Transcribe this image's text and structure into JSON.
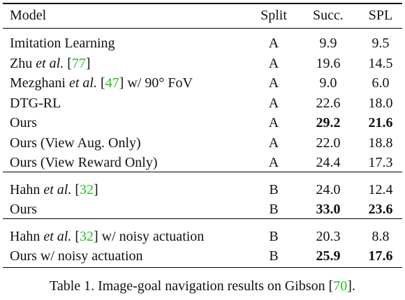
{
  "table": {
    "header": [
      "Model",
      "Split",
      "Succ.",
      "SPL"
    ],
    "groups": [
      {
        "rows": [
          {
            "model": [
              "Imitation Learning"
            ],
            "split": "A",
            "succ": "9.9",
            "spl": "9.5"
          },
          {
            "model": [
              "Zhu ",
              "et al.",
              " [",
              "77",
              "]"
            ],
            "split": "A",
            "succ": "19.6",
            "spl": "14.5"
          },
          {
            "model": [
              "Mezghani ",
              "et al.",
              " [",
              "47",
              "] w/ 90° FoV"
            ],
            "split": "A",
            "succ": "9.0",
            "spl": "6.0"
          },
          {
            "model": [
              "DTG-RL"
            ],
            "split": "A",
            "succ": "22.6",
            "spl": "18.0"
          },
          {
            "model": [
              "Ours"
            ],
            "split": "A",
            "succ": "29.2",
            "spl": "21.6"
          },
          {
            "model": [
              "Ours (View Aug. Only)"
            ],
            "split": "A",
            "succ": "22.0",
            "spl": "18.8"
          },
          {
            "model": [
              "Ours (View Reward Only)"
            ],
            "split": "A",
            "succ": "24.4",
            "spl": "17.3"
          }
        ]
      },
      {
        "rows": [
          {
            "model": [
              "Hahn ",
              "et al.",
              " [",
              "32",
              "]"
            ],
            "split": "B",
            "succ": "24.0",
            "spl": "12.4"
          },
          {
            "model": [
              "Ours"
            ],
            "split": "B",
            "succ": "33.0",
            "spl": "23.6"
          }
        ]
      },
      {
        "rows": [
          {
            "model": [
              "Hahn ",
              "et al.",
              " [",
              "32",
              "] w/ noisy actuation"
            ],
            "split": "B",
            "succ": "20.3",
            "spl": "8.8"
          },
          {
            "model": [
              "Ours w/ noisy actuation"
            ],
            "split": "B",
            "succ": "25.9",
            "spl": "17.6"
          }
        ]
      }
    ],
    "caption": [
      "Table 1. Image-goal navigation results on Gibson [",
      "70",
      "]."
    ]
  }
}
